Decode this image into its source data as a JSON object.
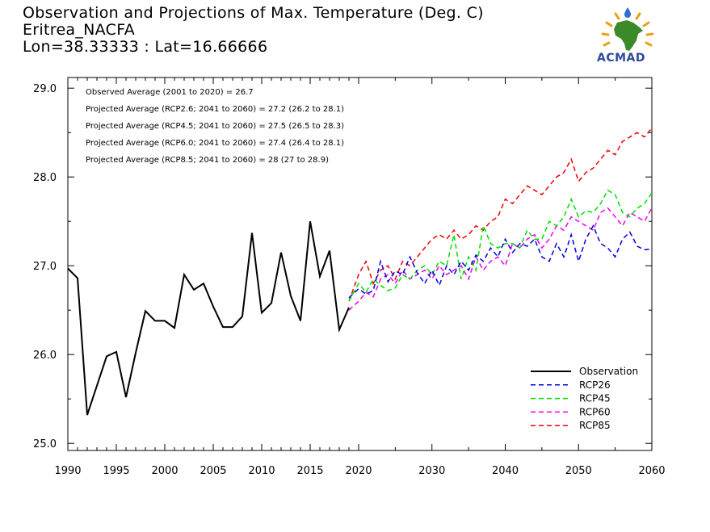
{
  "header": {
    "title_line1": "Observation and Projections of Max. Temperature (Deg. C)",
    "title_line2": "Eritrea_NACFA",
    "title_line3": "Lon=38.33333 : Lat=16.66666"
  },
  "logo": {
    "text": "ACMAD",
    "icon": "africa-map-icon"
  },
  "stats": [
    "Observed Average (2001 to 2020) = 26.7",
    "Projected Average (RCP2.6; 2041 to 2060) = 27.2 (26.2 to 28.1)",
    "Projected Average (RCP4.5; 2041 to 2060) = 27.5 (26.5 to 28.3)",
    "Projected Average (RCP6.0; 2041 to 2060) = 27.4 (26.4 to 28.1)",
    "Projected Average (RCP8.5; 2041 to 2060) = 28 (27 to 28.9)"
  ],
  "chart_data": {
    "type": "line",
    "xlim": [
      1990,
      2060
    ],
    "ylim": [
      24.92,
      29.12
    ],
    "x_ticks": [
      1990,
      1995,
      2000,
      2005,
      2010,
      2015,
      2020,
      2030,
      2040,
      2050,
      2060
    ],
    "x_tick_labels": [
      "1990",
      "1995",
      "2000",
      "2005",
      "2010",
      "2015",
      "2020",
      "2030",
      "2040",
      "2050",
      "2060"
    ],
    "y_ticks": [
      25.0,
      26.0,
      27.0,
      28.0,
      29.0
    ],
    "y_tick_labels": [
      "25.0",
      "26.0",
      "27.0",
      "28.0",
      "29.0"
    ],
    "legend_position": "bottom-right",
    "series": [
      {
        "name": "Observation",
        "color": "#000000",
        "style": "solid",
        "x": [
          1990,
          1991,
          1992,
          1993,
          1994,
          1995,
          1996,
          1997,
          1998,
          1999,
          2000,
          2001,
          2002,
          2003,
          2004,
          2005,
          2006,
          2007,
          2008,
          2009,
          2010,
          2011,
          2012,
          2013,
          2014,
          2015,
          2016,
          2017,
          2018,
          2019
        ],
        "y": [
          26.97,
          26.86,
          25.32,
          25.65,
          25.98,
          26.03,
          25.52,
          26.02,
          26.49,
          26.38,
          26.38,
          26.3,
          26.9,
          26.73,
          26.8,
          26.54,
          26.31,
          26.31,
          26.43,
          27.37,
          26.47,
          26.58,
          27.15,
          26.66,
          26.38,
          27.5,
          26.88,
          27.17,
          26.28,
          26.53
        ]
      },
      {
        "name": "RCP26",
        "color": "#0000dd",
        "style": "dashed",
        "x": [
          2019,
          2020,
          2021,
          2022,
          2023,
          2024,
          2025,
          2026,
          2027,
          2028,
          2029,
          2030,
          2031,
          2032,
          2033,
          2034,
          2035,
          2036,
          2037,
          2038,
          2039,
          2040,
          2041,
          2042,
          2043,
          2044,
          2045,
          2046,
          2047,
          2048,
          2049,
          2050,
          2051,
          2052,
          2053,
          2054,
          2055,
          2056,
          2057,
          2058,
          2059,
          2060
        ],
        "y": [
          26.64,
          26.74,
          26.68,
          26.72,
          27.05,
          26.82,
          26.94,
          26.9,
          27.1,
          26.92,
          26.8,
          26.95,
          26.78,
          27.0,
          26.9,
          27.05,
          26.95,
          27.12,
          27.05,
          27.2,
          27.1,
          27.3,
          27.15,
          27.25,
          27.22,
          27.3,
          27.1,
          27.05,
          27.25,
          27.1,
          27.35,
          27.05,
          27.3,
          27.45,
          27.25,
          27.2,
          27.1,
          27.3,
          27.38,
          27.22,
          27.18,
          27.19
        ]
      },
      {
        "name": "RCP45",
        "color": "#00dd00",
        "style": "dashed",
        "x": [
          2019,
          2020,
          2021,
          2022,
          2023,
          2024,
          2025,
          2026,
          2027,
          2028,
          2029,
          2030,
          2031,
          2032,
          2033,
          2034,
          2035,
          2036,
          2037,
          2038,
          2039,
          2040,
          2041,
          2042,
          2043,
          2044,
          2045,
          2046,
          2047,
          2048,
          2049,
          2050,
          2051,
          2052,
          2053,
          2054,
          2055,
          2056,
          2057,
          2058,
          2059,
          2060
        ],
        "y": [
          26.6,
          26.8,
          26.7,
          26.85,
          26.78,
          26.72,
          26.75,
          26.9,
          26.85,
          26.95,
          27.0,
          26.9,
          27.05,
          27.0,
          27.35,
          26.85,
          27.1,
          26.95,
          27.45,
          27.25,
          27.2,
          27.25,
          27.25,
          27.2,
          27.4,
          27.3,
          27.3,
          27.5,
          27.45,
          27.55,
          27.75,
          27.55,
          27.62,
          27.6,
          27.7,
          27.85,
          27.8,
          27.6,
          27.55,
          27.65,
          27.7,
          27.82
        ]
      },
      {
        "name": "RCP60",
        "color": "#ee00ee",
        "style": "dashed",
        "x": [
          2019,
          2020,
          2021,
          2022,
          2023,
          2024,
          2025,
          2026,
          2027,
          2028,
          2029,
          2030,
          2031,
          2032,
          2033,
          2034,
          2035,
          2036,
          2037,
          2038,
          2039,
          2040,
          2041,
          2042,
          2043,
          2044,
          2045,
          2046,
          2047,
          2048,
          2049,
          2050,
          2051,
          2052,
          2053,
          2054,
          2055,
          2056,
          2057,
          2058,
          2059,
          2060
        ],
        "y": [
          26.5,
          26.6,
          26.7,
          26.65,
          26.85,
          26.9,
          26.8,
          26.95,
          26.85,
          26.9,
          26.95,
          26.85,
          27.0,
          26.9,
          26.95,
          27.0,
          26.85,
          27.1,
          26.95,
          27.05,
          27.1,
          27.0,
          27.25,
          27.2,
          27.3,
          27.35,
          27.2,
          27.3,
          27.45,
          27.4,
          27.55,
          27.5,
          27.45,
          27.4,
          27.6,
          27.65,
          27.55,
          27.45,
          27.6,
          27.55,
          27.5,
          27.65
        ]
      },
      {
        "name": "RCP85",
        "color": "#ee0000",
        "style": "dashed",
        "x": [
          2019,
          2020,
          2021,
          2022,
          2023,
          2024,
          2025,
          2026,
          2027,
          2028,
          2029,
          2030,
          2031,
          2032,
          2033,
          2034,
          2035,
          2036,
          2037,
          2038,
          2039,
          2040,
          2041,
          2042,
          2043,
          2044,
          2045,
          2046,
          2047,
          2048,
          2049,
          2050,
          2051,
          2052,
          2053,
          2054,
          2055,
          2056,
          2057,
          2058,
          2059,
          2060
        ],
        "y": [
          26.6,
          26.9,
          27.05,
          26.8,
          26.95,
          27.0,
          26.85,
          27.05,
          27.0,
          27.1,
          27.2,
          27.3,
          27.35,
          27.3,
          27.4,
          27.3,
          27.35,
          27.45,
          27.4,
          27.5,
          27.55,
          27.75,
          27.7,
          27.8,
          27.9,
          27.85,
          27.8,
          27.9,
          28.0,
          28.05,
          28.2,
          27.95,
          28.05,
          28.1,
          28.2,
          28.3,
          28.25,
          28.4,
          28.45,
          28.5,
          28.45,
          28.55
        ]
      }
    ]
  }
}
